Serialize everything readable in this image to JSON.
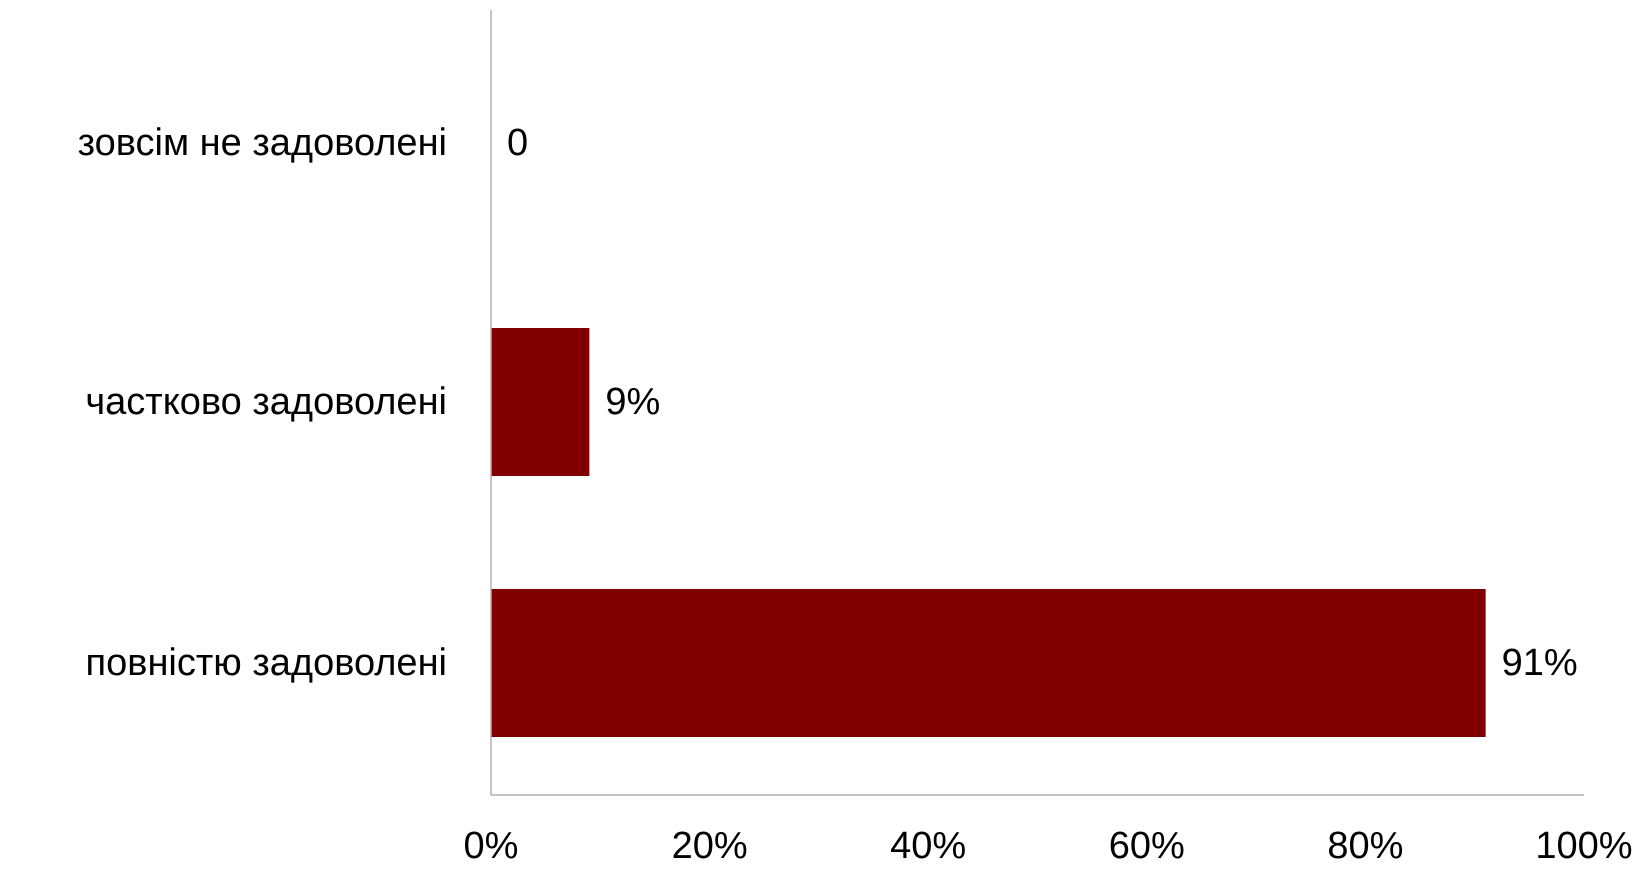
{
  "chart_data": {
    "type": "bar",
    "orientation": "horizontal",
    "categories": [
      "зовсім не задоволені",
      "частково задоволені",
      "повністю задоволені"
    ],
    "values": [
      0,
      9,
      91
    ],
    "data_labels": [
      "0",
      "9%",
      "91%"
    ],
    "xlim": [
      0,
      100
    ],
    "x_ticks": [
      "0%",
      "20%",
      "40%",
      "60%",
      "80%",
      "100%"
    ],
    "title": "",
    "xlabel": "",
    "ylabel": "",
    "grid": false,
    "legend": "none",
    "colors": {
      "bar": "#800000",
      "axis": "#b0b0b0"
    }
  }
}
